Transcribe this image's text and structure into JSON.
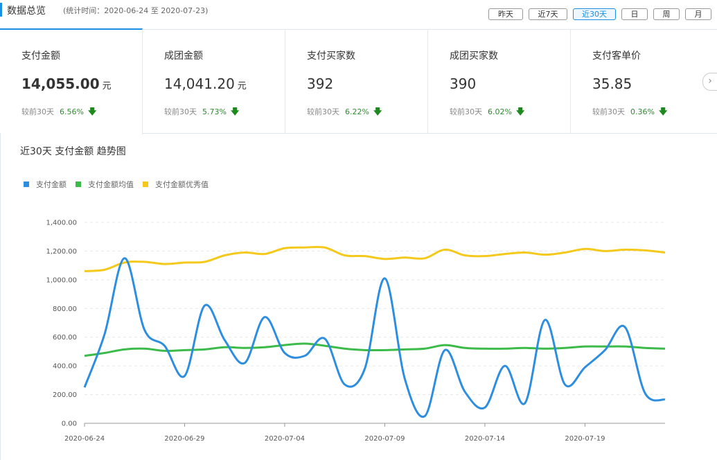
{
  "header": {
    "title": "数据总览",
    "subtitle": "(统计时间：2020-06-24 至 2020-07-23)",
    "buttons": [
      "昨天",
      "近7天",
      "近30天",
      "日",
      "周",
      "月"
    ],
    "active_button": "近30天"
  },
  "metrics": [
    {
      "label": "支付金额",
      "value": "14,055.00",
      "unit": "元",
      "compare_label": "较前30天",
      "change": "6.56%",
      "trend": "down"
    },
    {
      "label": "成团金额",
      "value": "14,041.20",
      "unit": "元",
      "compare_label": "较前30天",
      "change": "5.73%",
      "trend": "down"
    },
    {
      "label": "支付买家数",
      "value": "392",
      "unit": "",
      "compare_label": "较前30天",
      "change": "6.22%",
      "trend": "down"
    },
    {
      "label": "成团买家数",
      "value": "390",
      "unit": "",
      "compare_label": "较前30天",
      "change": "6.02%",
      "trend": "down"
    },
    {
      "label": "支付客单价",
      "value": "35.85",
      "unit": "",
      "compare_label": "较前30天",
      "change": "0.36%",
      "trend": "down"
    }
  ],
  "chart_title": "近30天 支付金额 趋势图",
  "colors": {
    "accent": "#1a8fe3",
    "series_blue": "#2d8ee0",
    "series_green": "#3dbb4a",
    "series_yellow": "#f5c91b",
    "trend_down": "#1e8a1e"
  },
  "icons": {
    "trend_down": "arrow-down-icon",
    "next": "chevron-right-icon"
  },
  "chart_data": {
    "type": "line",
    "title": "近30天 支付金额 趋势图",
    "legend_position": "top-left",
    "grid": true,
    "x": [
      "2020-06-24",
      "2020-06-25",
      "2020-06-26",
      "2020-06-27",
      "2020-06-28",
      "2020-06-29",
      "2020-06-30",
      "2020-07-01",
      "2020-07-02",
      "2020-07-03",
      "2020-07-04",
      "2020-07-05",
      "2020-07-06",
      "2020-07-07",
      "2020-07-08",
      "2020-07-09",
      "2020-07-10",
      "2020-07-11",
      "2020-07-12",
      "2020-07-13",
      "2020-07-14",
      "2020-07-15",
      "2020-07-16",
      "2020-07-17",
      "2020-07-18",
      "2020-07-19",
      "2020-07-20",
      "2020-07-21",
      "2020-07-22",
      "2020-07-23"
    ],
    "x_ticks": [
      "2020-06-24",
      "2020-06-29",
      "2020-07-04",
      "2020-07-09",
      "2020-07-14",
      "2020-07-19"
    ],
    "y_ticks": [
      "0.00",
      "200.00",
      "400.00",
      "600.00",
      "800.00",
      "1,000.00",
      "1,200.00",
      "1,400.00"
    ],
    "ylim": [
      0,
      1400
    ],
    "series": [
      {
        "name": "支付金额",
        "color": "#2d8ee0",
        "values": [
          250,
          620,
          1150,
          650,
          540,
          330,
          820,
          580,
          420,
          740,
          490,
          470,
          590,
          270,
          380,
          1010,
          310,
          50,
          510,
          220,
          110,
          400,
          140,
          720,
          270,
          390,
          510,
          670,
          210,
          165
        ]
      },
      {
        "name": "支付金额均值",
        "color": "#3dbb4a",
        "values": [
          470,
          490,
          515,
          520,
          505,
          510,
          515,
          530,
          525,
          530,
          545,
          555,
          540,
          520,
          510,
          510,
          515,
          520,
          545,
          525,
          520,
          520,
          525,
          520,
          525,
          535,
          535,
          535,
          525,
          520
        ]
      },
      {
        "name": "支付金额优秀值",
        "color": "#f5c91b",
        "values": [
          1060,
          1070,
          1120,
          1125,
          1110,
          1120,
          1125,
          1170,
          1190,
          1180,
          1220,
          1225,
          1225,
          1170,
          1165,
          1145,
          1155,
          1150,
          1210,
          1170,
          1165,
          1180,
          1190,
          1175,
          1190,
          1215,
          1200,
          1210,
          1205,
          1190
        ]
      }
    ]
  }
}
